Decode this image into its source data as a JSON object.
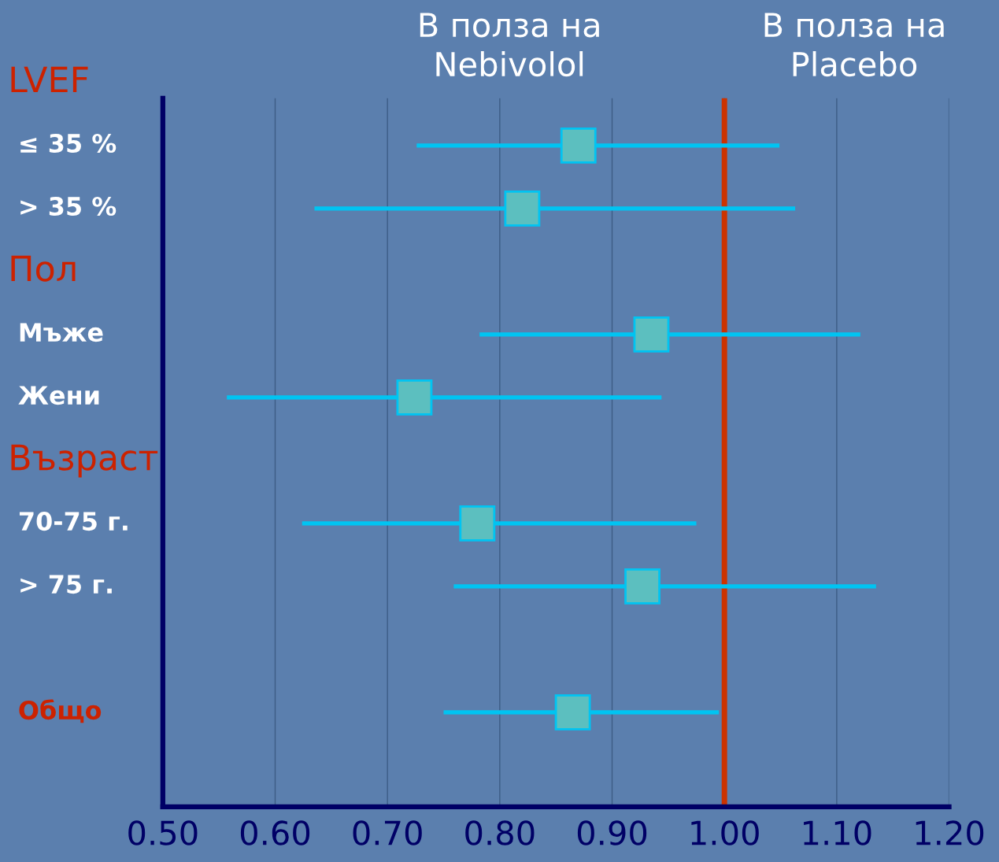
{
  "chart_data": {
    "type": "scatter",
    "orientation": "horizontal",
    "marker": "square",
    "color": "#5cbfbf",
    "categories": [
      "LVEF",
      "≤ 35 %",
      "> 35 %",
      "Пол",
      "Мъже",
      "Жени",
      "Възраст",
      "70-75 г.",
      "> 75 г.",
      null,
      "Общо"
    ],
    "values": [
      null,
      0.87,
      0.82,
      null,
      0.935,
      0.724,
      null,
      0.78,
      0.927,
      null,
      0.865
    ],
    "errors": [
      null,
      [
        0.726,
        1.049
      ],
      [
        0.635,
        1.063
      ],
      null,
      [
        0.782,
        1.121
      ],
      [
        0.557,
        0.944
      ],
      null,
      [
        0.624,
        0.975
      ],
      [
        0.759,
        1.135
      ],
      null,
      [
        0.75,
        0.995
      ]
    ],
    "xlim": [
      0.5,
      1.2
    ],
    "xticks": [
      {
        "value": 0.5,
        "label": "0.50"
      },
      {
        "value": 0.6,
        "label": "0.60"
      },
      {
        "value": 0.7,
        "label": "0.70"
      },
      {
        "value": 0.8,
        "label": "0.80"
      },
      {
        "value": 0.9,
        "label": "0.90"
      },
      {
        "value": 1.0,
        "label": "1.00"
      },
      {
        "value": 1.1,
        "label": "1.10"
      },
      {
        "value": 1.2,
        "label": "1.20"
      }
    ],
    "grid": "x",
    "ref_lines": [
      {
        "axis": "x",
        "value": 1.0,
        "color": "#cc3300"
      }
    ],
    "annotations": [
      "В полза на\nNebivolol",
      "В полза на\nPlacebo"
    ]
  }
}
